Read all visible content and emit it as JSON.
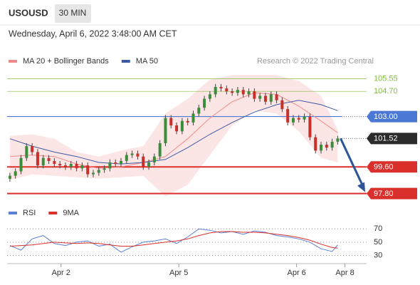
{
  "header": {
    "symbol": "USOUSD",
    "timeframe": "30 MIN",
    "date": "Wednesday, April 6, 2022 3:48:00 AM CET",
    "source": "Research © 2022 Trading Central"
  },
  "chart_data": [
    {
      "type": "candlestick",
      "xlim": [
        -0.5,
        64.2
      ],
      "ylim": [
        97.3,
        106.3
      ],
      "up_color": "#3a8d3a",
      "down_color": "#c8302a",
      "x": [
        0,
        1,
        2,
        3,
        4,
        5,
        6,
        7,
        8,
        9,
        10,
        11,
        12,
        13,
        14,
        15,
        16,
        17,
        18,
        19,
        20,
        21,
        22,
        23,
        24,
        25,
        26,
        27,
        28,
        29,
        30,
        31,
        32,
        33,
        34,
        35,
        36,
        37,
        38,
        39,
        40,
        41,
        42,
        43,
        44,
        45,
        46,
        47,
        48,
        49,
        50,
        51,
        52,
        53,
        54,
        55,
        56,
        57,
        58,
        59
      ],
      "open": [
        98.8,
        99.0,
        99.3,
        100.2,
        101.0,
        100.6,
        99.7,
        100.2,
        100.0,
        99.8,
        99.7,
        99.6,
        99.8,
        99.5,
        99.7,
        99.1,
        99.2,
        99.4,
        99.5,
        99.9,
        99.8,
        100.0,
        100.4,
        100.5,
        100.3,
        99.6,
        99.9,
        100.3,
        101.2,
        102.9,
        102.4,
        102.0,
        102.7,
        102.6,
        103.2,
        103.6,
        104.2,
        104.5,
        105.0,
        104.9,
        104.7,
        104.6,
        104.8,
        104.5,
        104.7,
        104.2,
        104.4,
        104.0,
        104.5,
        104.1,
        103.5,
        102.6,
        102.9,
        102.8,
        103.0,
        101.6,
        100.7,
        101.1,
        100.9,
        101.3
      ],
      "high": [
        99.2,
        99.5,
        100.4,
        101.2,
        101.2,
        100.8,
        100.4,
        100.4,
        100.2,
        100.0,
        99.9,
        100.0,
        100.0,
        99.9,
        99.9,
        99.4,
        99.6,
        99.7,
        100.1,
        100.1,
        100.2,
        100.6,
        100.7,
        100.7,
        100.5,
        100.1,
        100.5,
        101.4,
        103.1,
        103.1,
        102.6,
        102.9,
        102.9,
        103.4,
        103.8,
        104.4,
        104.7,
        105.2,
        105.2,
        105.1,
        104.9,
        105.0,
        105.0,
        104.9,
        104.9,
        104.6,
        104.6,
        104.7,
        104.7,
        104.3,
        103.7,
        103.1,
        103.1,
        103.2,
        103.2,
        101.8,
        101.3,
        101.3,
        101.5,
        101.7
      ],
      "low": [
        98.6,
        98.8,
        99.1,
        100.0,
        100.4,
        99.5,
        99.5,
        99.8,
        99.6,
        99.5,
        99.4,
        99.4,
        99.3,
        99.3,
        98.9,
        98.9,
        99.0,
        99.2,
        99.3,
        99.6,
        99.6,
        99.8,
        100.2,
        100.1,
        99.4,
        99.4,
        99.7,
        100.1,
        101.0,
        102.2,
        101.8,
        101.8,
        102.4,
        102.4,
        103.0,
        103.4,
        104.0,
        104.3,
        104.7,
        104.5,
        104.4,
        104.4,
        104.3,
        104.3,
        104.0,
        104.0,
        103.8,
        103.8,
        103.9,
        103.3,
        102.4,
        102.4,
        102.6,
        102.6,
        101.4,
        100.5,
        100.5,
        100.7,
        100.7,
        101.1
      ],
      "close": [
        99.0,
        99.3,
        100.2,
        101.0,
        100.6,
        99.7,
        100.2,
        100.0,
        99.8,
        99.7,
        99.6,
        99.8,
        99.5,
        99.7,
        99.1,
        99.2,
        99.4,
        99.5,
        99.9,
        99.8,
        100.0,
        100.4,
        100.5,
        100.3,
        99.6,
        99.9,
        100.3,
        101.2,
        102.9,
        102.4,
        102.0,
        102.7,
        102.6,
        103.2,
        103.6,
        104.2,
        104.5,
        105.0,
        104.9,
        104.7,
        104.6,
        104.8,
        104.5,
        104.7,
        104.2,
        104.4,
        104.0,
        104.5,
        104.1,
        103.5,
        102.6,
        102.9,
        102.8,
        103.0,
        101.6,
        100.7,
        101.1,
        100.9,
        101.3,
        101.52
      ],
      "series": [
        {
          "name": "MA 20 + Bollinger Bands",
          "color": "#f08a8a",
          "band_color": "#fbe0e0",
          "x": [
            0,
            4,
            8,
            12,
            16,
            20,
            24,
            28,
            32,
            36,
            40,
            44,
            48,
            52,
            56,
            59
          ],
          "values": [
            100.3,
            100.4,
            100.3,
            99.8,
            99.5,
            99.6,
            99.9,
            100.3,
            101.5,
            102.9,
            104.0,
            104.6,
            104.5,
            103.7,
            102.7,
            101.9
          ],
          "upper": [
            101.7,
            101.8,
            101.5,
            100.6,
            100.3,
            100.7,
            101.0,
            103.2,
            104.2,
            105.5,
            105.8,
            105.8,
            105.8,
            105.4,
            104.4,
            102.1
          ],
          "lower": [
            98.7,
            99.1,
            99.0,
            98.9,
            98.8,
            98.9,
            99.0,
            97.6,
            98.4,
            100.4,
            102.4,
            103.4,
            103.2,
            102.0,
            100.2,
            99.9
          ]
        },
        {
          "name": "MA 50",
          "color": "#3b5ba5",
          "x": [
            0,
            4,
            8,
            12,
            16,
            20,
            24,
            28,
            32,
            36,
            40,
            44,
            48,
            52,
            56,
            59
          ],
          "values": [
            101.5,
            101.0,
            100.6,
            100.3,
            99.9,
            99.8,
            99.9,
            100.1,
            100.9,
            101.8,
            102.6,
            103.3,
            103.8,
            104.1,
            103.8,
            103.4
          ]
        }
      ],
      "levels": [
        {
          "value": 105.55,
          "color": "#7fba3f",
          "style": "text"
        },
        {
          "value": 104.7,
          "label": "104.70",
          "color": "#7fba3f",
          "style": "text"
        },
        {
          "value": 103,
          "label": "103.00",
          "color": "#4a78d4",
          "style": "box",
          "line": "full"
        },
        {
          "value": 101.52,
          "color": "#2b2b2b",
          "style": "box",
          "line": "dotted"
        },
        {
          "value": 99.6,
          "label": "99.60",
          "color": "#d9302c",
          "style": "box",
          "line": "thick"
        },
        {
          "value": 97.8,
          "label": "97.80",
          "color": "#d9302c",
          "style": "box",
          "line": "thick"
        }
      ],
      "arrow_color": "#2d5597"
    },
    {
      "type": "line",
      "xlim": [
        -0.5,
        64.2
      ],
      "ylim": [
        22,
        80
      ],
      "yticks": [
        70,
        50,
        30
      ],
      "grid": true,
      "xticks": [
        {
          "value": 9.2,
          "label": "Apr 2"
        },
        {
          "value": 30.4,
          "label": "Apr 5"
        },
        {
          "value": 51.6,
          "label": "Apr 6"
        },
        {
          "value": 60.3,
          "label": "Apr 8"
        }
      ],
      "series": [
        {
          "name": "RSI",
          "color": "#5b7fd6",
          "x": [
            0,
            2,
            4,
            6,
            8,
            10,
            12,
            14,
            16,
            18,
            20,
            22,
            24,
            26,
            28,
            30,
            32,
            34,
            36,
            38,
            40,
            42,
            44,
            46,
            48,
            50,
            52,
            54,
            56,
            58,
            59
          ],
          "values": [
            45,
            38,
            55,
            60,
            48,
            45,
            50,
            52,
            44,
            47,
            35,
            43,
            50,
            52,
            55,
            48,
            58,
            70,
            68,
            64,
            66,
            62,
            67,
            65,
            60,
            58,
            55,
            50,
            40,
            36,
            46
          ]
        },
        {
          "name": "9MA",
          "color": "#d9302c",
          "x": [
            0,
            2,
            4,
            6,
            8,
            10,
            12,
            14,
            16,
            18,
            20,
            22,
            24,
            26,
            28,
            30,
            32,
            34,
            36,
            38,
            40,
            42,
            44,
            46,
            48,
            50,
            52,
            54,
            56,
            58,
            59
          ],
          "values": [
            44,
            45,
            46,
            48,
            50,
            49,
            48,
            49,
            48,
            46,
            44,
            44,
            46,
            48,
            50,
            52,
            55,
            60,
            64,
            66,
            66,
            65,
            65,
            64,
            62,
            60,
            57,
            53,
            47,
            42,
            41
          ]
        }
      ]
    }
  ]
}
